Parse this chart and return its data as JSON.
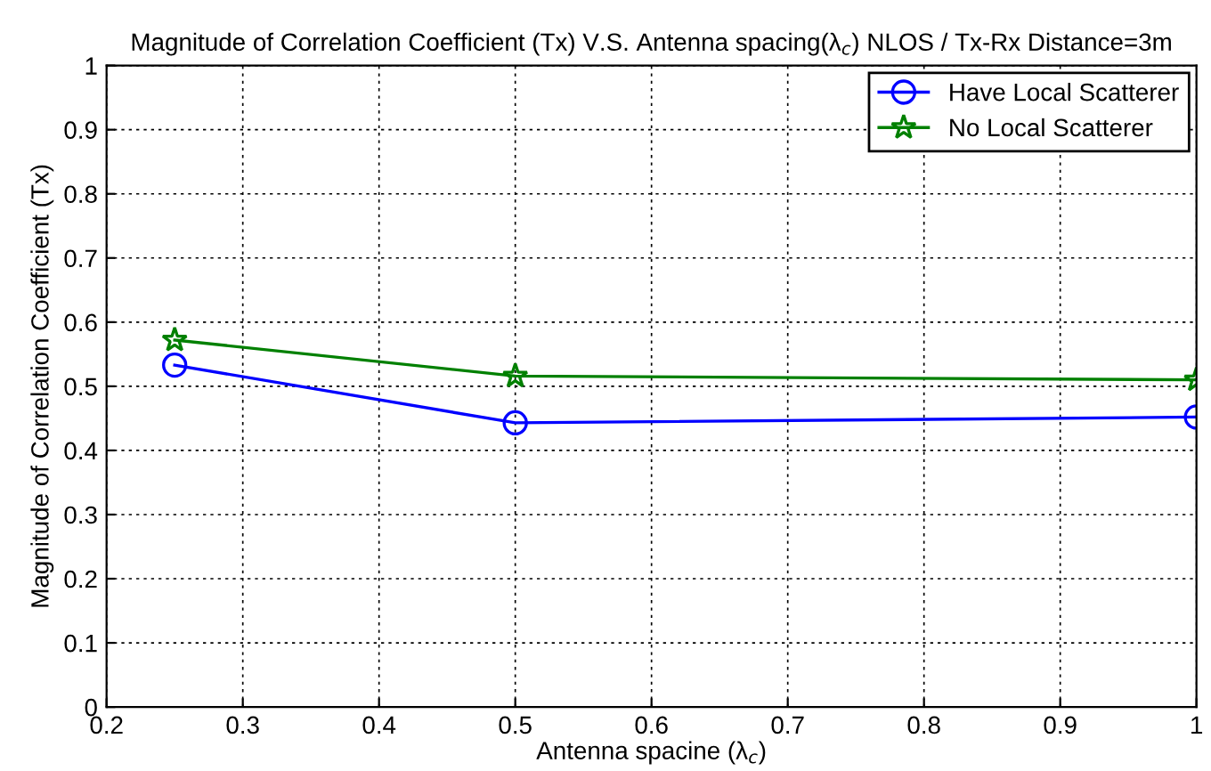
{
  "chart_data": {
    "type": "line",
    "title": "Magnitude of Correlation Coefficient (Tx) V.S. Antenna spacing(λ$_{c}$) NLOS / Tx-Rx Distance=3m",
    "xlabel": "Antenna spacine (λ$_{c}$)",
    "ylabel": "Magnitude of Correlation Coefficient (Tx)",
    "x": [
      0.25,
      0.5,
      1
    ],
    "series": [
      {
        "name": "Have Local Scatterer",
        "color": "#0000ff",
        "marker": "circle",
        "values": [
          0.533,
          0.443,
          0.452
        ]
      },
      {
        "name": "No Local Scatterer",
        "color": "#008000",
        "marker": "star",
        "values": [
          0.572,
          0.516,
          0.51
        ]
      }
    ],
    "xlim": [
      0.2,
      1
    ],
    "xticks": [
      0.2,
      0.3,
      0.4,
      0.5,
      0.6,
      0.7,
      0.8,
      0.9,
      1
    ],
    "ylim": [
      0,
      1
    ],
    "yticks": [
      0,
      0.1,
      0.2,
      0.3,
      0.4,
      0.5,
      0.6,
      0.7,
      0.8,
      0.9,
      1
    ],
    "grid": true,
    "legend": "top right",
    "line_style": "solid"
  }
}
